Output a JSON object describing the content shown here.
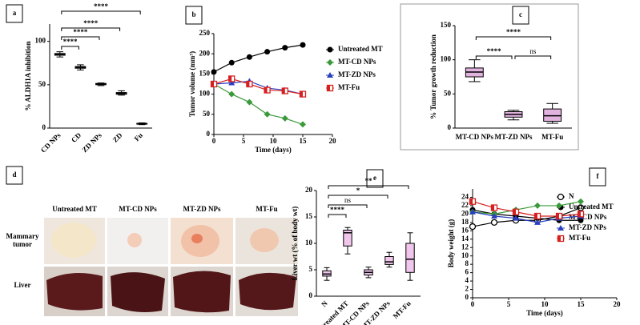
{
  "panel_labels": [
    "a",
    "b",
    "c",
    "d",
    "e",
    "f"
  ],
  "photo_panel": {
    "columns": [
      "Untreated MT",
      "MT-CD NPs",
      "MT-ZD NPs",
      "MT-Fu"
    ],
    "rows": [
      "Mammary tumor",
      "Liver"
    ]
  },
  "chart_data": [
    {
      "type": "box",
      "ylabel": "% ALDH1A inhibition",
      "categories": [
        "CD NPs",
        "CD",
        "ZD NPs",
        "ZD",
        "Fu"
      ],
      "min": [
        82,
        67,
        49,
        38,
        4
      ],
      "q1": [
        84,
        69,
        50,
        39,
        4.5
      ],
      "median": [
        85,
        70,
        51,
        40,
        5
      ],
      "q3": [
        86,
        71,
        51.5,
        41,
        5.5
      ],
      "max": [
        88,
        73,
        52,
        43,
        6
      ],
      "color": "#ffffff",
      "ylim": [
        0,
        120
      ],
      "yticks": [
        0,
        50,
        100
      ],
      "annotations": [
        {
          "text": "****",
          "from": "CD NPs",
          "to": "CD"
        },
        {
          "text": "****",
          "from": "CD NPs",
          "to": "ZD NPs"
        },
        {
          "text": "****",
          "from": "CD NPs",
          "to": "ZD"
        },
        {
          "text": "****",
          "from": "CD NPs",
          "to": "Fu"
        }
      ]
    },
    {
      "type": "line",
      "xlabel": "Time (days)",
      "ylabel": "Tumor volume (mm³)",
      "x": [
        0,
        3,
        6,
        9,
        12,
        15
      ],
      "series": [
        {
          "name": "Untreated MT",
          "color": "#000000",
          "marker": "circle",
          "values": [
            155,
            178,
            192,
            205,
            215,
            222
          ]
        },
        {
          "name": "MT-CD NPs",
          "color": "#3a9a3a",
          "marker": "diamond",
          "values": [
            125,
            100,
            80,
            50,
            40,
            25
          ]
        },
        {
          "name": "MT-ZD NPs",
          "color": "#2b3fbf",
          "marker": "triangle",
          "values": [
            125,
            128,
            132,
            115,
            110,
            100
          ]
        },
        {
          "name": "MT-Fu",
          "color": "#d62020",
          "marker": "square-half",
          "values": [
            125,
            138,
            125,
            110,
            108,
            100
          ]
        }
      ],
      "xlim": [
        0,
        20
      ],
      "xticks": [
        0,
        5,
        10,
        15,
        20
      ],
      "ylim": [
        0,
        250
      ],
      "yticks": [
        0,
        50,
        100,
        150,
        200,
        250
      ],
      "legend": "right"
    },
    {
      "type": "box",
      "ylabel": "% Tumor growth reduction",
      "categories": [
        "MT-CD NPs",
        "MT-ZD NPs",
        "MT-Fu"
      ],
      "min": [
        68,
        12,
        7
      ],
      "q1": [
        75,
        16,
        10
      ],
      "median": [
        82,
        20,
        18
      ],
      "q3": [
        88,
        24,
        28
      ],
      "max": [
        100,
        26,
        36
      ],
      "color": "#e3b3e0",
      "ylim": [
        0,
        150
      ],
      "yticks": [
        0,
        50,
        100,
        150
      ],
      "annotations": [
        {
          "text": "****",
          "from": "MT-CD NPs",
          "to": "MT-ZD NPs"
        },
        {
          "text": "ns",
          "from": "MT-ZD NPs",
          "to": "MT-Fu"
        },
        {
          "text": "****",
          "from": "MT-CD NPs",
          "to": "MT-Fu"
        }
      ]
    },
    {
      "type": "box",
      "ylabel": "Liver wt (% of body wt)",
      "categories": [
        "N",
        "Untreated MT",
        "MT-CD NPs",
        "MT-ZD NPs",
        "MT-Fu"
      ],
      "min": [
        3,
        8,
        3.5,
        5.5,
        3
      ],
      "q1": [
        3.8,
        9.5,
        4,
        6,
        4.5
      ],
      "median": [
        4.2,
        12,
        4.5,
        6.5,
        7
      ],
      "q3": [
        4.8,
        12.5,
        5,
        7.5,
        10
      ],
      "max": [
        5.4,
        13,
        5.5,
        8.3,
        12
      ],
      "color": "#f0c6ec",
      "ylim": [
        0,
        20
      ],
      "yticks": [
        0,
        5,
        10,
        15,
        20
      ],
      "annotations": [
        {
          "text": "****",
          "from": "N",
          "to": "Untreated MT"
        },
        {
          "text": "ns",
          "from": "N",
          "to": "MT-CD NPs"
        },
        {
          "text": "*",
          "from": "N",
          "to": "MT-ZD NPs"
        },
        {
          "text": "**",
          "from": "N",
          "to": "MT-Fu"
        }
      ]
    },
    {
      "type": "line",
      "xlabel": "Time (days)",
      "ylabel": "Body weight (g)",
      "x": [
        0,
        3,
        6,
        9,
        12,
        15
      ],
      "series": [
        {
          "name": "N",
          "color": "#000000",
          "marker": "circle-open",
          "values": [
            17,
            18,
            18.5,
            18.5,
            19.5,
            21.5
          ]
        },
        {
          "name": "Untreated MT",
          "color": "#000000",
          "marker": "circle",
          "values": [
            21,
            20,
            19.5,
            19,
            18.5,
            18.5
          ]
        },
        {
          "name": "MT-CD NPs",
          "color": "#3a9a3a",
          "marker": "diamond",
          "values": [
            20.5,
            20,
            21,
            22,
            22,
            23
          ]
        },
        {
          "name": "MT-ZD NPs",
          "color": "#2b3fbf",
          "marker": "triangle",
          "values": [
            20.5,
            19.5,
            19,
            18,
            19,
            19.5
          ]
        },
        {
          "name": "MT-Fu",
          "color": "#d62020",
          "marker": "square-half",
          "values": [
            23,
            21.5,
            20.5,
            19.5,
            19.5,
            20
          ]
        }
      ],
      "xlim": [
        0,
        20
      ],
      "xticks": [
        0,
        5,
        10,
        15,
        20
      ],
      "ylim": [
        0,
        26
      ],
      "yticks": [
        0,
        2,
        4,
        6,
        8,
        10,
        12,
        14,
        16,
        18,
        20,
        22,
        24
      ],
      "legend": "upper right"
    }
  ]
}
